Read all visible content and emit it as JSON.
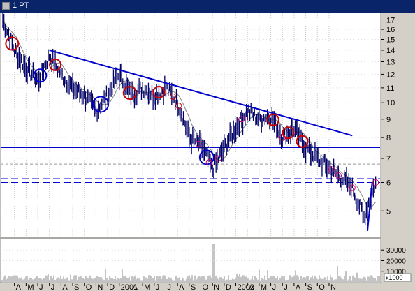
{
  "window": {
    "title": "1 PT",
    "background": "#d4d0c8",
    "titlebar_color": "#0a246a"
  },
  "icons": {
    "window_icon": "chart-window-icon",
    "scroll_thumb": "scroll-thumb-icon"
  },
  "price_panel": {
    "background": "#ffffff",
    "price_color": "#000066",
    "moving_average_color": "#808080",
    "trendline_color": "#0000cc",
    "support_line_color": "#0000cc",
    "red_marker_color": "#cc0000",
    "blue_marker_color": "#0000cc",
    "pink_marker_color": "#cc0066",
    "y_ticks": [
      17,
      16,
      15,
      14,
      13,
      12,
      11,
      10,
      9,
      8,
      7,
      6,
      5
    ],
    "y_scale": "log",
    "ylim": [
      4.3,
      17.5
    ],
    "support_lines": [
      {
        "value": 7.5,
        "style": "solid"
      },
      {
        "value": 6.75,
        "style": "dashed-gray"
      },
      {
        "value": 6.15,
        "style": "dashed-blue"
      },
      {
        "value": 6.0,
        "style": "dashed-blue"
      }
    ],
    "trendline": {
      "from": [
        "2000-07",
        14.0
      ],
      "to": [
        "2002-09",
        8.1
      ]
    },
    "uptrend": {
      "from": [
        "2002-10",
        4.4
      ],
      "to": [
        "2002-11",
        6.0
      ]
    }
  },
  "volume_panel": {
    "y_ticks": [
      "30000",
      "20000",
      "10000"
    ],
    "unit_label": "x1000",
    "bar_color": "#888888"
  },
  "x_axis": {
    "labels": [
      "A",
      "M",
      "J",
      "J",
      "A",
      "S",
      "O",
      "N",
      "D",
      "2001",
      "A",
      "M",
      "J",
      "J",
      "A",
      "S",
      "O",
      "N",
      "D",
      "2002",
      "A",
      "M",
      "J",
      "J",
      "A",
      "S",
      "O",
      "N"
    ]
  },
  "chart_data": {
    "type": "line",
    "title": "1 PT",
    "x": [
      "2000-03",
      "2000-04",
      "2000-05",
      "2000-06",
      "2000-07",
      "2000-08",
      "2000-09",
      "2000-10",
      "2000-11",
      "2000-12",
      "2001-01",
      "2001-02",
      "2001-03",
      "2001-04",
      "2001-05",
      "2001-06",
      "2001-07",
      "2001-08",
      "2001-09",
      "2001-10",
      "2001-11",
      "2001-12",
      "2002-01",
      "2002-02",
      "2002-03",
      "2002-04",
      "2002-05",
      "2002-06",
      "2002-07",
      "2002-08",
      "2002-09",
      "2002-10",
      "2002-11"
    ],
    "series": [
      {
        "values": [
          17.0,
          14.0,
          12.5,
          11.5,
          13.5,
          12.0,
          11.0,
          10.5,
          9.5,
          10.5,
          12.0,
          10.5,
          11.0,
          10.5,
          11.0,
          10.0,
          8.0,
          7.6,
          6.5,
          7.5,
          8.5,
          9.5,
          9.0,
          9.2,
          8.0,
          8.5,
          7.5,
          7.0,
          6.6,
          6.2,
          5.8,
          4.8,
          6.0
        ]
      }
    ],
    "ylim": [
      4.3,
      17.5
    ],
    "y_scale": "log",
    "y_ticks": [
      17,
      16,
      15,
      14,
      13,
      12,
      11,
      10,
      9,
      8,
      7,
      6,
      5
    ]
  }
}
